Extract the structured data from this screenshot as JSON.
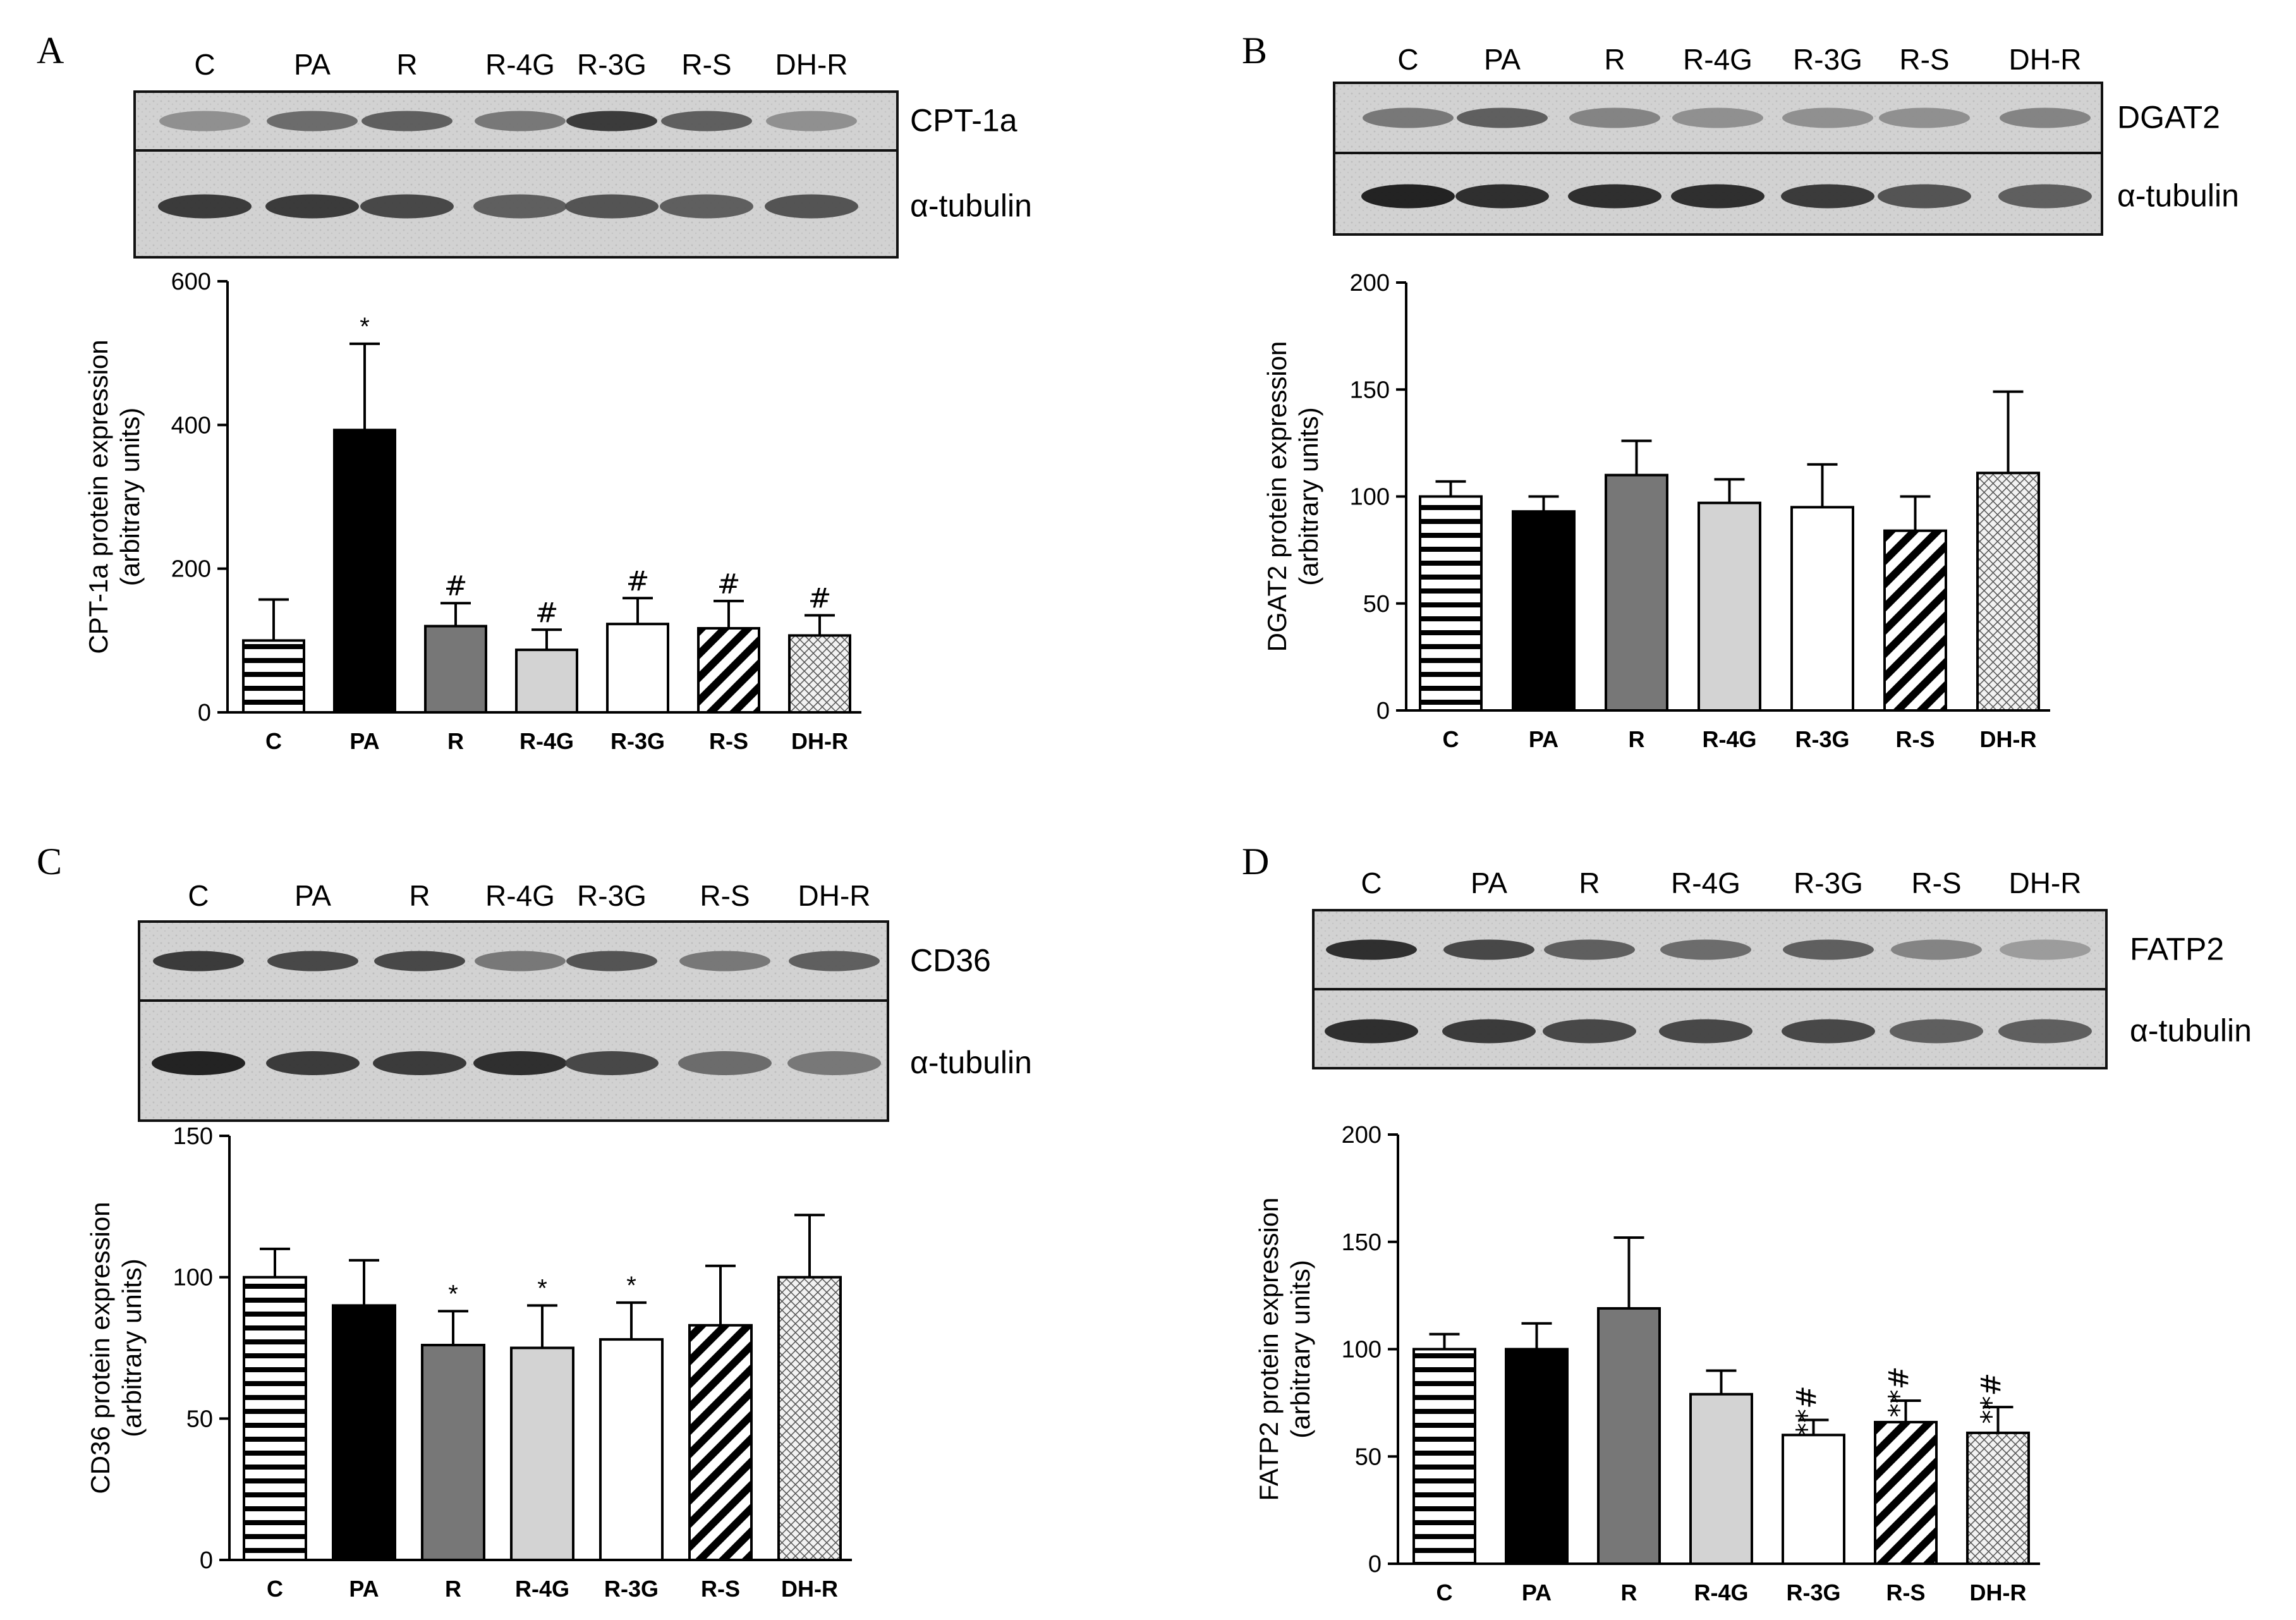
{
  "lanes": [
    "C",
    "PA",
    "R",
    "R-4G",
    "R-3G",
    "R-S",
    "DH-R"
  ],
  "loading_control": "α-tubulin",
  "patterns": [
    "hlines",
    "solid-black",
    "solid-gray",
    "solid-lightgray",
    "white",
    "diag",
    "crosshatch"
  ],
  "chart_data": [
    {
      "panel": "A",
      "type": "bar",
      "blot_label": "CPT-1a",
      "categories": [
        "C",
        "PA",
        "R",
        "R-4G",
        "R-3G",
        "R-S",
        "DH-R"
      ],
      "values": [
        100,
        393,
        120,
        87,
        123,
        117,
        107
      ],
      "errors": [
        57,
        120,
        32,
        28,
        36,
        38,
        28
      ],
      "significance": [
        "",
        "*",
        "#",
        "#",
        "#",
        "#",
        "#"
      ],
      "ylabel": [
        "CPT-1a protein expression",
        "(arbitrary units)"
      ],
      "ylim": [
        0,
        600
      ],
      "yticks": [
        0,
        200,
        400,
        600
      ],
      "band_intensity": [
        0.45,
        0.6,
        0.65,
        0.55,
        0.8,
        0.65,
        0.45
      ],
      "tubulin_intensity": [
        0.8,
        0.8,
        0.75,
        0.65,
        0.7,
        0.65,
        0.7
      ]
    },
    {
      "panel": "B",
      "type": "bar",
      "blot_label": "DGAT2",
      "categories": [
        "C",
        "PA",
        "R",
        "R-4G",
        "R-3G",
        "R-S",
        "DH-R"
      ],
      "values": [
        100,
        93,
        110,
        97,
        95,
        84,
        111
      ],
      "errors": [
        7,
        7,
        16,
        11,
        20,
        16,
        38
      ],
      "significance": [
        "",
        "",
        "",
        "",
        "",
        "",
        ""
      ],
      "ylabel": [
        "DGAT2 protein expression",
        "(arbitrary units)"
      ],
      "ylim": [
        0,
        200
      ],
      "yticks": [
        0,
        50,
        100,
        150,
        200
      ],
      "band_intensity": [
        0.55,
        0.65,
        0.5,
        0.45,
        0.45,
        0.45,
        0.5
      ],
      "tubulin_intensity": [
        0.9,
        0.85,
        0.85,
        0.85,
        0.8,
        0.7,
        0.65
      ]
    },
    {
      "panel": "C",
      "type": "bar",
      "blot_label": "CD36",
      "categories": [
        "C",
        "PA",
        "R",
        "R-4G",
        "R-3G",
        "R-S",
        "DH-R"
      ],
      "values": [
        100,
        90,
        76,
        75,
        78,
        83,
        100
      ],
      "errors": [
        10,
        16,
        12,
        15,
        13,
        21,
        22
      ],
      "significance": [
        "",
        "",
        "*",
        "*",
        "*",
        "",
        ""
      ],
      "ylabel": [
        "CD36 protein expression",
        "(arbitrary units)"
      ],
      "ylim": [
        0,
        150
      ],
      "yticks": [
        0,
        50,
        100,
        150
      ],
      "band_intensity": [
        0.8,
        0.75,
        0.75,
        0.55,
        0.7,
        0.55,
        0.65
      ],
      "tubulin_intensity": [
        0.9,
        0.8,
        0.8,
        0.85,
        0.75,
        0.6,
        0.55
      ]
    },
    {
      "panel": "D",
      "type": "bar",
      "blot_label": "FATP2",
      "categories": [
        "C",
        "PA",
        "R",
        "R-4G",
        "R-3G",
        "R-S",
        "DH-R"
      ],
      "values": [
        100,
        100,
        119,
        79,
        60,
        66,
        61
      ],
      "errors": [
        7,
        12,
        33,
        11,
        7,
        10,
        12
      ],
      "significance": [
        "",
        "",
        "",
        "",
        "**#",
        "**#",
        "**#"
      ],
      "ylabel": [
        "FATP2 protein expression",
        "(arbitrary units)"
      ],
      "ylim": [
        0,
        200
      ],
      "yticks": [
        0,
        50,
        100,
        150,
        200
      ],
      "band_intensity": [
        0.85,
        0.75,
        0.65,
        0.6,
        0.65,
        0.5,
        0.4
      ],
      "tubulin_intensity": [
        0.85,
        0.8,
        0.75,
        0.75,
        0.75,
        0.65,
        0.65
      ]
    }
  ]
}
